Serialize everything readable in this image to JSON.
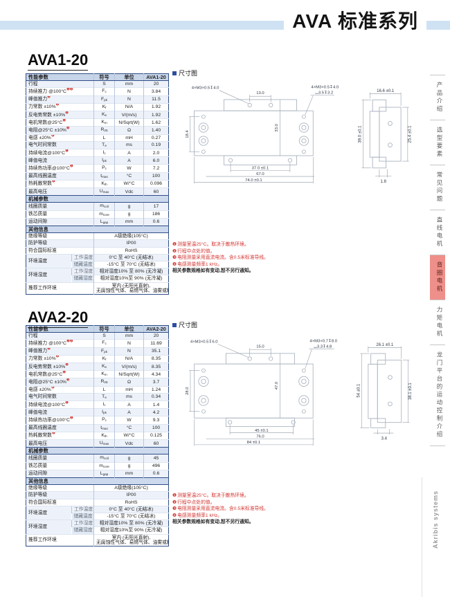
{
  "header": {
    "series_title": "AVA 标准系列"
  },
  "sidebar": {
    "tabs": [
      {
        "label": "产品介绍",
        "active": false
      },
      {
        "label": "选型要素",
        "active": false
      },
      {
        "label": "常见问题",
        "active": false
      },
      {
        "label": "直线电机",
        "active": false
      },
      {
        "label": "音圈电机",
        "active": true
      },
      {
        "label": "力矩电机",
        "active": false
      },
      {
        "label": "龙门平台的运动控制介绍",
        "active": false
      }
    ],
    "brand": "Akribis systems"
  },
  "labels": {
    "perf": "性能参数",
    "symbol": "符号",
    "unit": "单位",
    "mech": "机械参数",
    "other": "其他信息",
    "dim": "尺寸图"
  },
  "notes": {
    "items": [
      {
        "num": "❶",
        "text": "测量室温25°C。取决于散热环境。"
      },
      {
        "num": "❷",
        "text": "行程中点处的值。"
      },
      {
        "num": "❸",
        "text": "电阻测量采用直流电流。含0.5米标准导线。"
      },
      {
        "num": "❹",
        "text": "电感测量频率1 kHz。"
      }
    ],
    "footer": "相关参数规格如有变动,恕不另行通知。"
  },
  "other_info": {
    "singles": [
      {
        "label": "绝缘等级",
        "value": "A级绝缘(105°C)"
      },
      {
        "label": "防护等级",
        "value": "IP00"
      },
      {
        "label": "符合国际标准",
        "value": "RoHS"
      }
    ],
    "groups": [
      {
        "label": "环境温度",
        "subs": [
          {
            "sub": "工作温度",
            "value": "0°C 至 40°C (无结冰)"
          },
          {
            "sub": "储藏温度",
            "value": "-15°C 至 70°C (无结冰)"
          }
        ]
      },
      {
        "label": "环境湿度",
        "subs": [
          {
            "sub": "工作湿度",
            "value": "相对湿度10% 至 80% (无冷凝)"
          },
          {
            "sub": "储藏湿度",
            "value": "相对湿度10%至 90% (无冷凝)"
          }
        ]
      }
    ],
    "recommend": {
      "label": "推荐工作环境",
      "line1": "室内 (无阳光直射),",
      "line2": "无腐蚀性气体、易燃气体、油雾或粉尘"
    }
  },
  "sections": [
    {
      "model": "AVA1-20",
      "perf_rows": [
        {
          "param": "行程",
          "sup": "",
          "sym": "S",
          "sub": "",
          "unit": "mm",
          "value": "20"
        },
        {
          "param": "持续推力 @100°C",
          "sup": "❶❷",
          "sym": "F",
          "sub": "c",
          "unit": "N",
          "value": "3.84"
        },
        {
          "param": "峰值推力",
          "sup": "❷",
          "sym": "F",
          "sub": "pk",
          "unit": "N",
          "value": "11.5"
        },
        {
          "param": "力常数 ±10%",
          "sup": "❷",
          "sym": "K",
          "sub": "f",
          "unit": "N/A",
          "value": "1.92"
        },
        {
          "param": "反电势常数 ±10%",
          "sup": "❷",
          "sym": "K",
          "sub": "e",
          "unit": "V/(m/s)",
          "value": "1.92"
        },
        {
          "param": "电机常数@25°C",
          "sup": "❶",
          "sym": "K",
          "sub": "m",
          "unit": "N/Sqrt(W)",
          "value": "1.62"
        },
        {
          "param": "电阻@25°C ±10%",
          "sup": "❸",
          "sym": "R",
          "sub": "25",
          "unit": "Ω",
          "value": "1.40"
        },
        {
          "param": "电感 ±20%",
          "sup": "❹",
          "sym": "L",
          "sub": "",
          "unit": "mH",
          "value": "0.27"
        },
        {
          "param": "电气时间常数",
          "sup": "",
          "sym": "T",
          "sub": "e",
          "unit": "ms",
          "value": "0.19"
        },
        {
          "param": "持续电流@100°C",
          "sup": "❶",
          "sym": "I",
          "sub": "c",
          "unit": "A",
          "value": "2.0"
        },
        {
          "param": "峰值电流",
          "sup": "",
          "sym": "I",
          "sub": "pk",
          "unit": "A",
          "value": "6.0"
        },
        {
          "param": "持续热功率@100°C",
          "sup": "❶",
          "sym": "P",
          "sub": "c",
          "unit": "W",
          "value": "7.2"
        },
        {
          "param": "最高线圈温度",
          "sup": "",
          "sym": "t",
          "sub": "max",
          "unit": "°C",
          "value": "100"
        },
        {
          "param": "热耗散常数",
          "sup": "❶",
          "sym": "K",
          "sub": "th",
          "unit": "W/°C",
          "value": "0.096"
        },
        {
          "param": "最高电压",
          "sup": "",
          "sym": "U",
          "sub": "max",
          "unit": "Vdc",
          "value": "60"
        }
      ],
      "mech_rows": [
        {
          "param": "线圈质量",
          "sym": "m",
          "sub": "coil",
          "unit": "g",
          "value": "17"
        },
        {
          "param": "铁芯质量",
          "sym": "m",
          "sub": "core",
          "unit": "g",
          "value": "186"
        },
        {
          "param": "运动间隙",
          "sym": "L",
          "sub": "gap",
          "unit": "mm",
          "value": "0.6"
        }
      ],
      "dims": {
        "f_callout": "4×M3×0.5↧4.0",
        "f_pitch": "13.0",
        "f_callout_r1": "4×M3×0.5↧4.0",
        "f_callout_r2": "⌴3.5↧3.2",
        "f_left": "18.4",
        "f_mid": "33.0",
        "f_b1": "37.0 ±0.1",
        "f_b2": "67.0",
        "f_b3": "74.0 ±0.1",
        "s_top": "16.6 ±0.1",
        "s_left": "39.0 ±0.1",
        "s_right": "25.4 ±0.1",
        "s_bottom": "1.8"
      }
    },
    {
      "model": "AVA2-20",
      "perf_rows": [
        {
          "param": "行程",
          "sup": "",
          "sym": "S",
          "sub": "",
          "unit": "mm",
          "value": "20"
        },
        {
          "param": "持续推力 @100°C",
          "sup": "❶❷",
          "sym": "F",
          "sub": "c",
          "unit": "N",
          "value": "11.69"
        },
        {
          "param": "峰值推力",
          "sup": "❷",
          "sym": "F",
          "sub": "pk",
          "unit": "N",
          "value": "35.1"
        },
        {
          "param": "力常数 ±10%",
          "sup": "❷",
          "sym": "K",
          "sub": "f",
          "unit": "N/A",
          "value": "8.35"
        },
        {
          "param": "反电势常数 ±10%",
          "sup": "❷",
          "sym": "K",
          "sub": "e",
          "unit": "V/(m/s)",
          "value": "8.35"
        },
        {
          "param": "电机常数@25°C",
          "sup": "❶",
          "sym": "K",
          "sub": "m",
          "unit": "N/Sqrt(W)",
          "value": "4.34"
        },
        {
          "param": "电阻@25°C ±10%",
          "sup": "❸",
          "sym": "R",
          "sub": "25",
          "unit": "Ω",
          "value": "3.7"
        },
        {
          "param": "电感 ±20%",
          "sup": "❹",
          "sym": "L",
          "sub": "",
          "unit": "mH",
          "value": "1.24"
        },
        {
          "param": "电气时间常数",
          "sup": "",
          "sym": "T",
          "sub": "e",
          "unit": "ms",
          "value": "0.34"
        },
        {
          "param": "持续电流@100°C",
          "sup": "❶",
          "sym": "I",
          "sub": "c",
          "unit": "A",
          "value": "1.4"
        },
        {
          "param": "峰值电流",
          "sup": "",
          "sym": "I",
          "sub": "pk",
          "unit": "A",
          "value": "4.2"
        },
        {
          "param": "持续热功率@100°C",
          "sup": "❶",
          "sym": "P",
          "sub": "c",
          "unit": "W",
          "value": "9.3"
        },
        {
          "param": "最高线圈温度",
          "sup": "",
          "sym": "t",
          "sub": "max",
          "unit": "°C",
          "value": "100"
        },
        {
          "param": "热耗散常数",
          "sup": "❶",
          "sym": "K",
          "sub": "th",
          "unit": "W/°C",
          "value": "0.125"
        },
        {
          "param": "最高电压",
          "sup": "",
          "sym": "U",
          "sub": "max",
          "unit": "Vdc",
          "value": "60"
        }
      ],
      "mech_rows": [
        {
          "param": "线圈质量",
          "sym": "m",
          "sub": "coil",
          "unit": "g",
          "value": "45"
        },
        {
          "param": "铁芯质量",
          "sym": "m",
          "sub": "core",
          "unit": "g",
          "value": "496"
        },
        {
          "param": "运动间隙",
          "sym": "L",
          "sub": "gap",
          "unit": "mm",
          "value": "0.6"
        }
      ],
      "dims": {
        "f_callout": "4×M3×0.5↧6.0",
        "f_pitch": "15.0",
        "f_callout_r1": "4×M3×0.7↧8.0",
        "f_callout_r2": "⌴3.3↧4.8",
        "f_left": "28.0",
        "f_mid": "47.0",
        "f_b1": "45 ±0.1",
        "f_b2": "76.0",
        "f_b3": "84 ±0.1",
        "s_top": "26.1 ±0.1",
        "s_left": "54 ±0.1",
        "s_right": "38.1 ±0.1",
        "s_bottom": "3.4"
      }
    }
  ]
}
